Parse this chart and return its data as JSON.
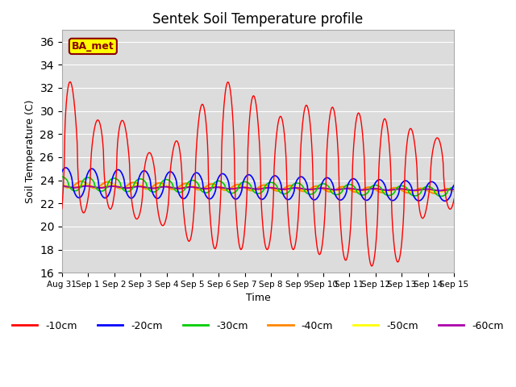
{
  "title": "Sentek Soil Temperature profile",
  "xlabel": "Time",
  "ylabel": "Soil Temperature (C)",
  "ylim": [
    16,
    37
  ],
  "yticks": [
    16,
    18,
    20,
    22,
    24,
    26,
    28,
    30,
    32,
    34,
    36
  ],
  "bg_color": "#dcdcdc",
  "annotation_text": "BA_met",
  "annotation_bg": "#ffff00",
  "annotation_border": "#8B0000",
  "series_colors": {
    "-10cm": "#ff0000",
    "-20cm": "#0000ff",
    "-30cm": "#00cc00",
    "-40cm": "#ff8800",
    "-50cm": "#ffff00",
    "-60cm": "#aa00aa"
  },
  "legend_labels": [
    "-10cm",
    "-20cm",
    "-30cm",
    "-40cm",
    "-50cm",
    "-60cm"
  ],
  "n_days": 15,
  "pts_per_day": 48
}
